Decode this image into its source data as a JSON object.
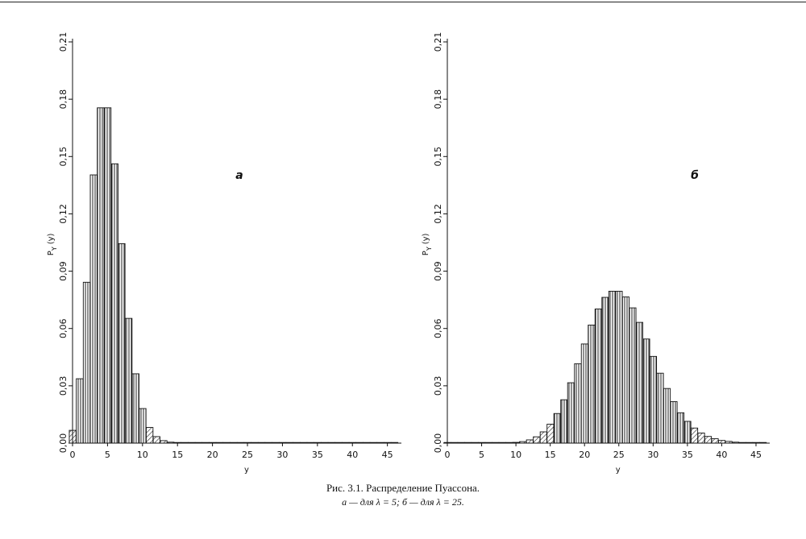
{
  "figure": {
    "caption": "Рис. 3.1. Распределение Пуассона.",
    "subcaption": "а — для λ = 5; б — для λ = 25."
  },
  "chart_data": [
    {
      "type": "bar",
      "panel_label": "а",
      "xlabel": "y",
      "ylabel": "P_Y(y)",
      "xlim": [
        0,
        47
      ],
      "ylim": [
        0,
        0.21
      ],
      "xticks": [
        "0",
        "5",
        "10",
        "15",
        "20",
        "25",
        "30",
        "35",
        "40",
        "45"
      ],
      "yticks": [
        "0,00",
        "0,03",
        "0,06",
        "0,09",
        "0,12",
        "0,15",
        "0,18",
        "0,21"
      ],
      "x": [
        0,
        1,
        2,
        3,
        4,
        5,
        6,
        7,
        8,
        9,
        10,
        11,
        12,
        13,
        14,
        15,
        16,
        17,
        18,
        19,
        20,
        21,
        22,
        23,
        24,
        25,
        26,
        27,
        28,
        29,
        30,
        31,
        32,
        33,
        34,
        35,
        36,
        37,
        38,
        39,
        40,
        41,
        42,
        43,
        44,
        45,
        46
      ],
      "values": [
        0.0067,
        0.0337,
        0.0842,
        0.1404,
        0.1755,
        0.1755,
        0.1462,
        0.1044,
        0.0653,
        0.0363,
        0.0181,
        0.0082,
        0.0034,
        0.0013,
        0.0005,
        0.0002,
        0.0001,
        0,
        0,
        0,
        0,
        0,
        0,
        0,
        0,
        0,
        0,
        0,
        0,
        0,
        0,
        0,
        0,
        0,
        0,
        0,
        0,
        0,
        0,
        0,
        0,
        0,
        0,
        0,
        0,
        0,
        0
      ]
    },
    {
      "type": "bar",
      "panel_label": "б",
      "xlabel": "y",
      "ylabel": "P_Y(y)",
      "xlim": [
        0,
        47
      ],
      "ylim": [
        0,
        0.21
      ],
      "xticks": [
        "0",
        "5",
        "10",
        "15",
        "20",
        "25",
        "30",
        "35",
        "40",
        "45"
      ],
      "yticks": [
        "0,00",
        "0,03",
        "0,06",
        "0,09",
        "0,12",
        "0,15",
        "0,18",
        "0,21"
      ],
      "x": [
        0,
        1,
        2,
        3,
        4,
        5,
        6,
        7,
        8,
        9,
        10,
        11,
        12,
        13,
        14,
        15,
        16,
        17,
        18,
        19,
        20,
        21,
        22,
        23,
        24,
        25,
        26,
        27,
        28,
        29,
        30,
        31,
        32,
        33,
        34,
        35,
        36,
        37,
        38,
        39,
        40,
        41,
        42,
        43,
        44,
        45,
        46
      ],
      "values": [
        0,
        0,
        0,
        0,
        0,
        0,
        0,
        0,
        0,
        0,
        0.0004,
        0.0008,
        0.0017,
        0.0033,
        0.0059,
        0.0099,
        0.0155,
        0.0227,
        0.0316,
        0.0415,
        0.0519,
        0.0618,
        0.0702,
        0.0763,
        0.0795,
        0.0795,
        0.0765,
        0.0708,
        0.0632,
        0.0545,
        0.0454,
        0.0366,
        0.0286,
        0.0217,
        0.0159,
        0.0114,
        0.0079,
        0.0053,
        0.0035,
        0.0023,
        0.0014,
        0.0009,
        0.0005,
        0.0003,
        0.0002,
        0.0001,
        0.0001
      ]
    }
  ]
}
